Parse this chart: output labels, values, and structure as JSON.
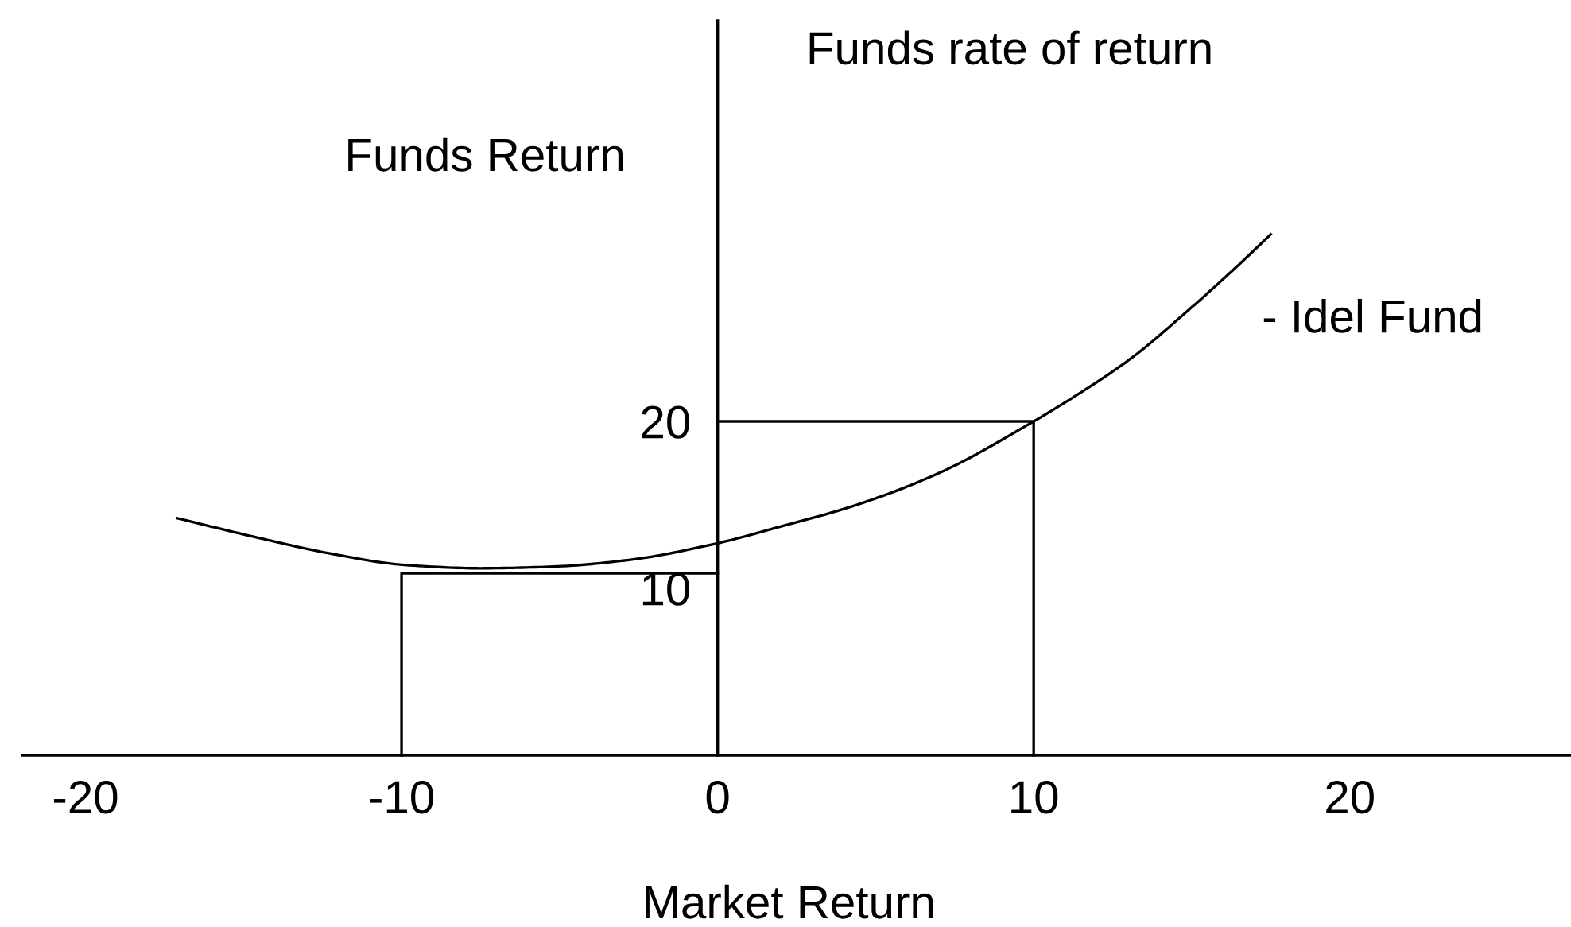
{
  "chart_data": {
    "type": "line",
    "title": "Funds rate of return",
    "xlabel": "Market Return",
    "ylabel": "Funds Return",
    "xlim": [
      -22,
      27
    ],
    "ylim": [
      0,
      44
    ],
    "xticks": [
      -20,
      -10,
      0,
      10,
      20
    ],
    "yticks": [
      10,
      20
    ],
    "series": [
      {
        "name": "- Idel Fund",
        "color": "#000000",
        "x": [
          -17.1,
          -14.7,
          -12.3,
          -9.9,
          -7.5,
          -5.2,
          -2.8,
          0,
          1.8,
          4.4,
          7.0,
          10,
          11.3,
          13.1,
          14.8,
          16.5,
          17.5
        ],
        "values": [
          14.2,
          13.1,
          12.1,
          11.4,
          11.2,
          11.3,
          11.7,
          12.7,
          13.6,
          15.0,
          16.9,
          20,
          21.5,
          23.8,
          26.5,
          29.4,
          31.2
        ]
      },
      {
        "color": "#000000",
        "x": [
          -10,
          -10,
          0
        ],
        "values": [
          0,
          10.9,
          10.9
        ]
      },
      {
        "color": "#000000",
        "x": [
          0,
          10,
          10
        ],
        "values": [
          20,
          20,
          0
        ]
      }
    ]
  }
}
